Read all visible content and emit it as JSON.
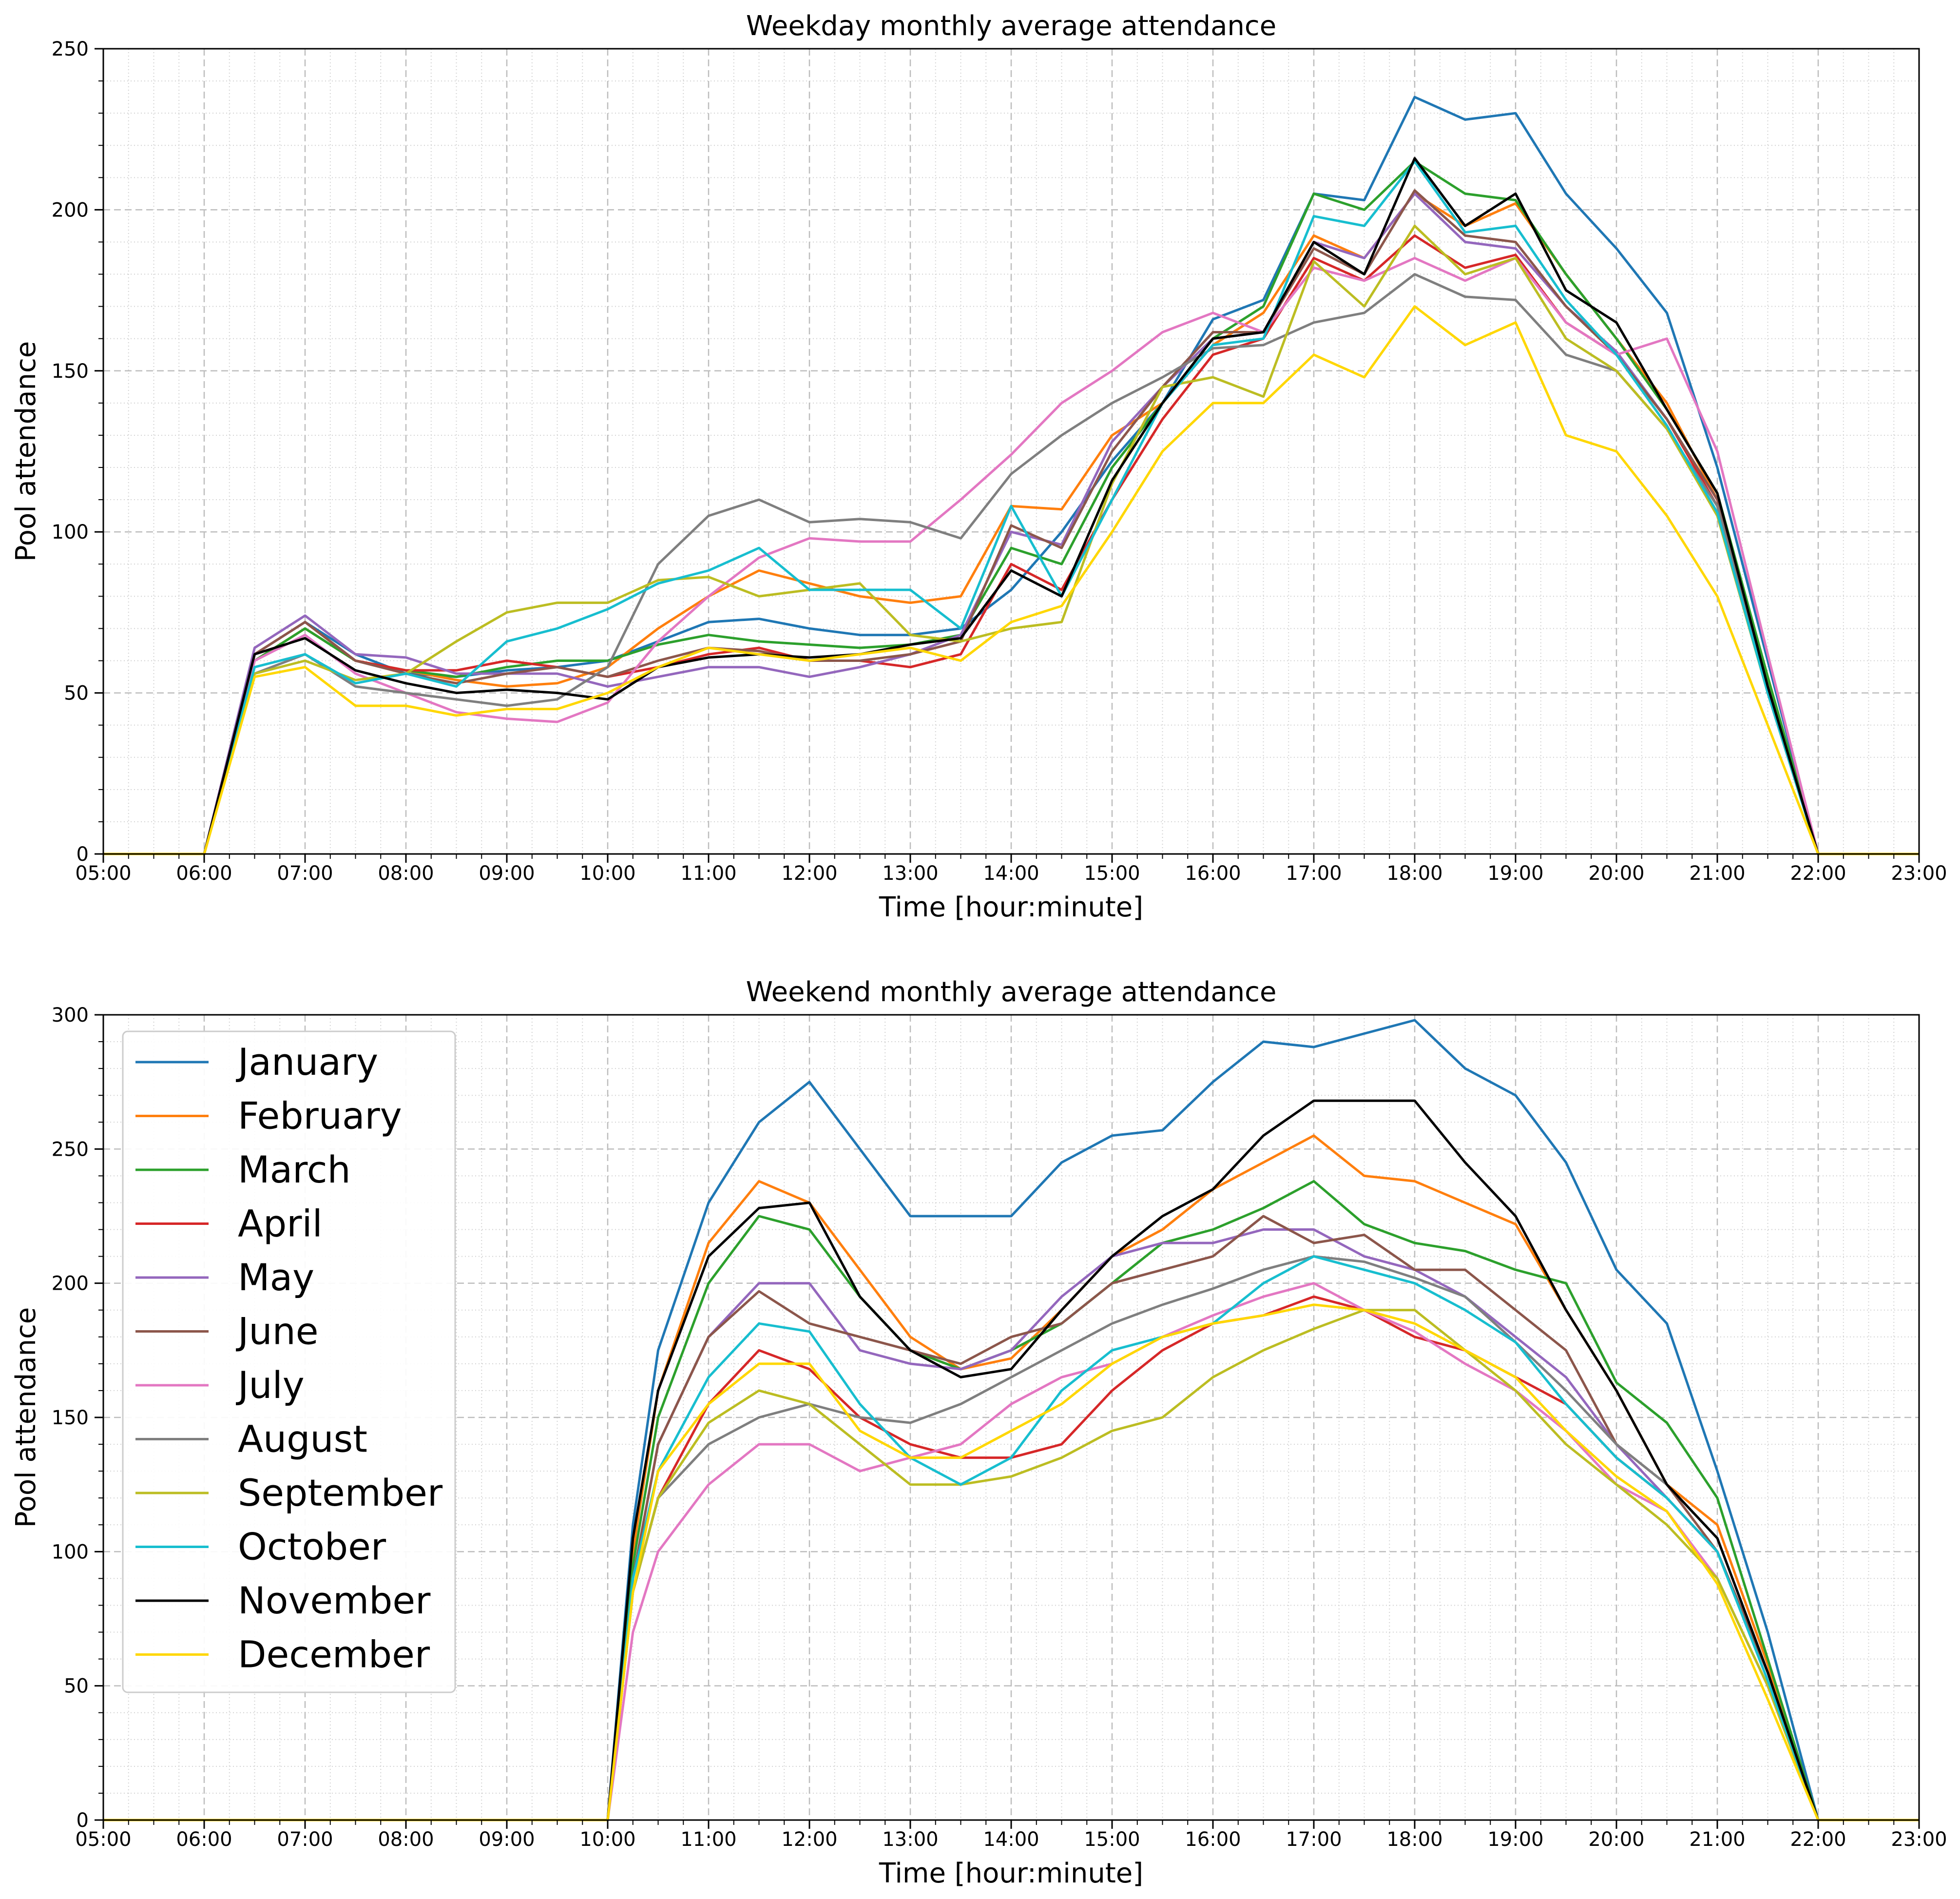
{
  "chart_data": [
    {
      "type": "line",
      "title": "Weekday monthly average attendance",
      "xlabel": "Time [hour:minute]",
      "ylabel": "Pool attendance",
      "x_ticks": [
        "05:00",
        "06:00",
        "07:00",
        "08:00",
        "09:00",
        "10:00",
        "11:00",
        "12:00",
        "13:00",
        "14:00",
        "15:00",
        "16:00",
        "17:00",
        "18:00",
        "19:00",
        "20:00",
        "21:00",
        "22:00",
        "23:00"
      ],
      "y_ticks": [
        "0",
        "50",
        "100",
        "150",
        "200",
        "250"
      ],
      "xlim": [
        "05:00",
        "23:00"
      ],
      "ylim": [
        0,
        250
      ],
      "grid": true,
      "legend": null,
      "x": [
        "05:00",
        "06:00",
        "06:30",
        "07:00",
        "07:30",
        "08:00",
        "08:30",
        "09:00",
        "09:30",
        "10:00",
        "10:30",
        "11:00",
        "11:30",
        "12:00",
        "12:30",
        "13:00",
        "13:30",
        "14:00",
        "14:30",
        "15:00",
        "15:30",
        "16:00",
        "16:30",
        "17:00",
        "17:30",
        "18:00",
        "18:30",
        "19:00",
        "19:30",
        "20:00",
        "20:30",
        "21:00",
        "21:30",
        "22:00",
        "23:00"
      ],
      "series": [
        {
          "name": "January",
          "values": [
            0,
            0,
            62,
            72,
            62,
            56,
            55,
            57,
            58,
            60,
            66,
            72,
            73,
            70,
            68,
            68,
            70,
            82,
            100,
            122,
            140,
            166,
            172,
            205,
            203,
            235,
            228,
            230,
            205,
            188,
            168,
            120,
            60,
            0,
            0
          ]
        },
        {
          "name": "February",
          "values": [
            0,
            0,
            60,
            70,
            60,
            57,
            54,
            52,
            53,
            58,
            70,
            80,
            88,
            84,
            80,
            78,
            80,
            108,
            107,
            130,
            140,
            158,
            168,
            192,
            185,
            205,
            195,
            202,
            180,
            160,
            140,
            110,
            55,
            0,
            0
          ]
        },
        {
          "name": "March",
          "values": [
            0,
            0,
            60,
            70,
            60,
            57,
            55,
            58,
            60,
            60,
            65,
            68,
            66,
            65,
            64,
            65,
            68,
            95,
            90,
            120,
            140,
            160,
            170,
            205,
            200,
            215,
            205,
            203,
            180,
            160,
            138,
            112,
            55,
            0,
            0
          ]
        },
        {
          "name": "April",
          "values": [
            0,
            0,
            62,
            72,
            60,
            57,
            57,
            60,
            58,
            55,
            58,
            62,
            64,
            60,
            60,
            58,
            62,
            90,
            82,
            110,
            135,
            155,
            160,
            185,
            178,
            192,
            182,
            186,
            165,
            155,
            135,
            108,
            50,
            0,
            0
          ]
        },
        {
          "name": "May",
          "values": [
            0,
            0,
            64,
            74,
            62,
            61,
            56,
            56,
            56,
            52,
            55,
            58,
            58,
            55,
            58,
            62,
            68,
            100,
            96,
            128,
            145,
            160,
            162,
            190,
            185,
            205,
            190,
            188,
            170,
            156,
            135,
            110,
            52,
            0,
            0
          ]
        },
        {
          "name": "June",
          "values": [
            0,
            0,
            62,
            72,
            60,
            56,
            53,
            56,
            58,
            55,
            60,
            64,
            63,
            60,
            60,
            62,
            66,
            102,
            95,
            125,
            145,
            162,
            162,
            188,
            180,
            206,
            192,
            190,
            170,
            155,
            135,
            110,
            52,
            0,
            0
          ]
        },
        {
          "name": "July",
          "values": [
            0,
            0,
            60,
            68,
            56,
            50,
            44,
            42,
            41,
            47,
            66,
            80,
            92,
            98,
            97,
            97,
            110,
            124,
            140,
            150,
            162,
            168,
            162,
            182,
            178,
            185,
            178,
            185,
            165,
            155,
            160,
            125,
            62,
            0,
            0
          ]
        },
        {
          "name": "August",
          "values": [
            0,
            0,
            56,
            62,
            52,
            50,
            48,
            46,
            48,
            58,
            90,
            105,
            110,
            103,
            104,
            103,
            98,
            118,
            130,
            140,
            148,
            157,
            158,
            165,
            168,
            180,
            173,
            172,
            155,
            150,
            132,
            108,
            52,
            0,
            0
          ]
        },
        {
          "name": "September",
          "values": [
            0,
            0,
            56,
            60,
            54,
            56,
            66,
            75,
            78,
            78,
            85,
            86,
            80,
            82,
            84,
            68,
            66,
            70,
            72,
            115,
            145,
            148,
            142,
            184,
            170,
            195,
            180,
            185,
            160,
            150,
            132,
            105,
            50,
            0,
            0
          ]
        },
        {
          "name": "October",
          "values": [
            0,
            0,
            58,
            62,
            53,
            56,
            52,
            66,
            70,
            76,
            84,
            88,
            95,
            82,
            82,
            82,
            70,
            108,
            80,
            110,
            140,
            158,
            160,
            198,
            195,
            215,
            193,
            195,
            172,
            155,
            133,
            106,
            50,
            0,
            0
          ]
        },
        {
          "name": "November",
          "values": [
            0,
            0,
            62,
            67,
            57,
            53,
            50,
            51,
            50,
            48,
            58,
            61,
            62,
            61,
            62,
            65,
            67,
            88,
            80,
            116,
            140,
            160,
            162,
            190,
            180,
            216,
            195,
            205,
            175,
            165,
            138,
            112,
            52,
            0,
            0
          ]
        },
        {
          "name": "December",
          "values": [
            0,
            0,
            55,
            58,
            46,
            46,
            43,
            45,
            45,
            50,
            58,
            64,
            62,
            60,
            62,
            64,
            60,
            72,
            77,
            100,
            125,
            140,
            140,
            155,
            148,
            170,
            158,
            165,
            130,
            125,
            105,
            80,
            40,
            0,
            0
          ]
        }
      ]
    },
    {
      "type": "line",
      "title": "Weekend monthly average attendance",
      "xlabel": "Time [hour:minute]",
      "ylabel": "Pool attendance",
      "x_ticks": [
        "05:00",
        "06:00",
        "07:00",
        "08:00",
        "09:00",
        "10:00",
        "11:00",
        "12:00",
        "13:00",
        "14:00",
        "15:00",
        "16:00",
        "17:00",
        "18:00",
        "19:00",
        "20:00",
        "21:00",
        "22:00",
        "23:00"
      ],
      "y_ticks": [
        "0",
        "50",
        "100",
        "150",
        "200",
        "250",
        "300"
      ],
      "xlim": [
        "05:00",
        "23:00"
      ],
      "ylim": [
        0,
        300
      ],
      "grid": true,
      "legend": "upper-left",
      "x": [
        "05:00",
        "10:00",
        "10:15",
        "10:30",
        "11:00",
        "11:30",
        "12:00",
        "12:30",
        "13:00",
        "13:30",
        "14:00",
        "14:30",
        "15:00",
        "15:30",
        "16:00",
        "16:30",
        "17:00",
        "17:30",
        "18:00",
        "18:30",
        "19:00",
        "19:30",
        "20:00",
        "20:30",
        "21:00",
        "21:30",
        "22:00",
        "23:00"
      ],
      "series": [
        {
          "name": "January",
          "values": [
            0,
            0,
            110,
            175,
            230,
            260,
            275,
            250,
            225,
            225,
            225,
            245,
            255,
            257,
            275,
            290,
            288,
            293,
            298,
            280,
            270,
            245,
            205,
            185,
            130,
            70,
            0,
            0
          ]
        },
        {
          "name": "February",
          "values": [
            0,
            0,
            100,
            160,
            215,
            238,
            230,
            205,
            180,
            168,
            172,
            190,
            210,
            220,
            235,
            245,
            255,
            240,
            238,
            230,
            222,
            190,
            160,
            125,
            110,
            58,
            0,
            0
          ]
        },
        {
          "name": "March",
          "values": [
            0,
            0,
            95,
            150,
            200,
            225,
            220,
            195,
            175,
            168,
            175,
            185,
            200,
            215,
            220,
            228,
            238,
            222,
            215,
            212,
            205,
            200,
            163,
            148,
            120,
            60,
            0,
            0
          ]
        },
        {
          "name": "April",
          "values": [
            0,
            0,
            85,
            120,
            155,
            175,
            168,
            150,
            140,
            135,
            135,
            140,
            160,
            175,
            185,
            188,
            195,
            190,
            180,
            175,
            165,
            155,
            135,
            120,
            100,
            55,
            0,
            0
          ]
        },
        {
          "name": "May",
          "values": [
            0,
            0,
            90,
            140,
            180,
            200,
            200,
            175,
            170,
            168,
            175,
            195,
            210,
            215,
            215,
            220,
            220,
            210,
            205,
            195,
            180,
            165,
            140,
            120,
            100,
            55,
            0,
            0
          ]
        },
        {
          "name": "June",
          "values": [
            0,
            0,
            90,
            140,
            180,
            197,
            185,
            180,
            175,
            170,
            180,
            185,
            200,
            205,
            210,
            225,
            215,
            218,
            205,
            205,
            190,
            175,
            140,
            125,
            100,
            55,
            0,
            0
          ]
        },
        {
          "name": "July",
          "values": [
            0,
            0,
            70,
            100,
            125,
            140,
            140,
            130,
            135,
            140,
            155,
            165,
            170,
            180,
            188,
            195,
            200,
            190,
            182,
            170,
            160,
            145,
            125,
            115,
            90,
            50,
            0,
            0
          ]
        },
        {
          "name": "August",
          "values": [
            0,
            0,
            85,
            120,
            140,
            150,
            155,
            150,
            148,
            155,
            165,
            175,
            185,
            192,
            198,
            205,
            210,
            208,
            202,
            195,
            178,
            160,
            140,
            125,
            105,
            55,
            0,
            0
          ]
        },
        {
          "name": "September",
          "values": [
            0,
            0,
            85,
            120,
            148,
            160,
            155,
            140,
            125,
            125,
            128,
            135,
            145,
            150,
            165,
            175,
            183,
            190,
            190,
            175,
            160,
            140,
            125,
            110,
            90,
            50,
            0,
            0
          ]
        },
        {
          "name": "October",
          "values": [
            0,
            0,
            90,
            130,
            165,
            185,
            182,
            155,
            135,
            125,
            135,
            160,
            175,
            180,
            185,
            200,
            210,
            205,
            200,
            190,
            178,
            155,
            135,
            120,
            100,
            52,
            0,
            0
          ]
        },
        {
          "name": "November",
          "values": [
            0,
            0,
            105,
            160,
            210,
            228,
            230,
            195,
            175,
            165,
            168,
            190,
            210,
            225,
            235,
            255,
            268,
            268,
            268,
            245,
            225,
            190,
            160,
            125,
            105,
            55,
            0,
            0
          ]
        },
        {
          "name": "December",
          "values": [
            0,
            0,
            85,
            130,
            155,
            170,
            170,
            145,
            135,
            135,
            145,
            155,
            170,
            180,
            185,
            188,
            192,
            190,
            185,
            175,
            165,
            145,
            128,
            115,
            88,
            45,
            0,
            0
          ]
        }
      ]
    }
  ],
  "legend_entries": [
    "January",
    "February",
    "March",
    "April",
    "May",
    "June",
    "July",
    "August",
    "September",
    "October",
    "November",
    "December"
  ],
  "colors": [
    "#1f77b4",
    "#ff7f0e",
    "#2ca02c",
    "#d62728",
    "#9467bd",
    "#8c564b",
    "#e377c2",
    "#7f7f7f",
    "#bcbd22",
    "#17becf",
    "#000000",
    "#ffd700"
  ]
}
